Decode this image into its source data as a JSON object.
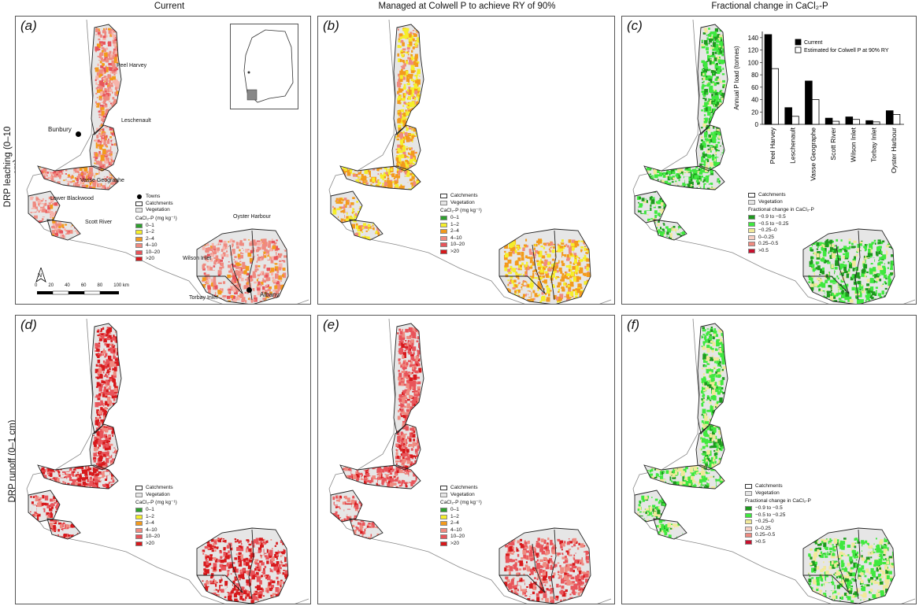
{
  "columns": {
    "current": "Current",
    "managed": "Managed at Colwell P to achieve RY of 90%",
    "fractional": "Fractional change in CaCl₂-P"
  },
  "rows": {
    "leaching": "DRP leaching (0–10 cm)",
    "runoff": "DRP runoff (0–1 cm)"
  },
  "panel_labels": [
    "(a)",
    "(b)",
    "(c)",
    "(d)",
    "(e)",
    "(f)"
  ],
  "place_labels": {
    "peel_harvey": "Peel Harvey",
    "leschenault": "Leschenault",
    "bunbury": "Bunbury",
    "vasse": "Vasse Geographe",
    "lower_blackwood": "Lower Blackwood",
    "scott_river": "Scott River",
    "wilson_inlet": "Wilson Inlet",
    "oyster_harbour": "Oyster Harbour",
    "torbay_inlet": "Torbay Inlet",
    "albany": "Albany"
  },
  "legend": {
    "towns": "Towns",
    "catchments": "Catchments",
    "vegetation": "Vegetation",
    "cacl2_title": "CaCl₂-P (mg kg⁻¹)",
    "cacl2_classes": [
      {
        "label": "0–1",
        "color": "#2ea02e"
      },
      {
        "label": "1–2",
        "color": "#f5ee2a"
      },
      {
        "label": "2–4",
        "color": "#f39a1c"
      },
      {
        "label": "4–10",
        "color": "#ef8a80"
      },
      {
        "label": "10–20",
        "color": "#e8545a"
      },
      {
        "label": ">20",
        "color": "#d7191c"
      }
    ],
    "frac_title": "Fractional change in CaCl₂-P",
    "frac_classes": [
      {
        "label": "−0.9 to −0.5",
        "color": "#1e9a1e"
      },
      {
        "label": "−0.5 to −0.25",
        "color": "#3fe83f"
      },
      {
        "label": "−0.25–0",
        "color": "#f1e99a"
      },
      {
        "label": "0–0.25",
        "color": "#f7d0c4"
      },
      {
        "label": "0.25–0.5",
        "color": "#ee8a80"
      },
      {
        "label": ">0.5",
        "color": "#c8102e"
      }
    ]
  },
  "scale_bar": {
    "ticks": [
      "0",
      "20",
      "40",
      "60",
      "80",
      "100 km"
    ]
  },
  "chart_data": {
    "type": "bar",
    "categories": [
      "Peel Harvey",
      "Leschenault",
      "Vasse Geographe",
      "Scott River",
      "Wilson Inlet",
      "Torbay Inlet",
      "Oyster Harbour"
    ],
    "series": [
      {
        "name": "Current",
        "values": [
          145,
          27,
          70,
          10,
          12,
          6,
          22
        ],
        "color": "#000000"
      },
      {
        "name": "Estimated for Colwell P at 90% RY",
        "values": [
          90,
          13,
          40,
          5,
          8,
          4,
          16
        ],
        "color": "#ffffff"
      }
    ],
    "ylabel": "Annual P load (tonnes)",
    "ylim": [
      0,
      150
    ],
    "yticks": [
      0,
      20,
      40,
      60,
      80,
      100,
      120,
      140
    ],
    "legend_position": "top-right"
  },
  "colors": {
    "vegetation": "#e6e6e6",
    "coast": "#666666"
  }
}
